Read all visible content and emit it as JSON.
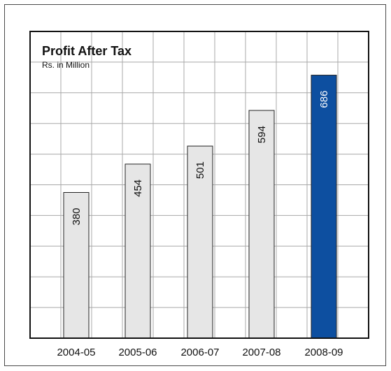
{
  "chart_data": {
    "type": "bar",
    "title": "Profit After Tax",
    "subtitle": "Rs. in Million",
    "xlabel": "",
    "ylabel": "",
    "categories": [
      "2004-05",
      "2005-06",
      "2006-07",
      "2007-08",
      "2008-09"
    ],
    "values": [
      380,
      454,
      501,
      594,
      686
    ],
    "data_labels": [
      "380",
      "454",
      "501",
      "594",
      "686"
    ],
    "ylim": [
      0,
      800
    ],
    "grid": true,
    "colors": {
      "bar": "#e6e6e6",
      "highlight_bar": "#0d4fa0",
      "grid": "#a8a8a8",
      "plot_border": "#111111"
    }
  }
}
